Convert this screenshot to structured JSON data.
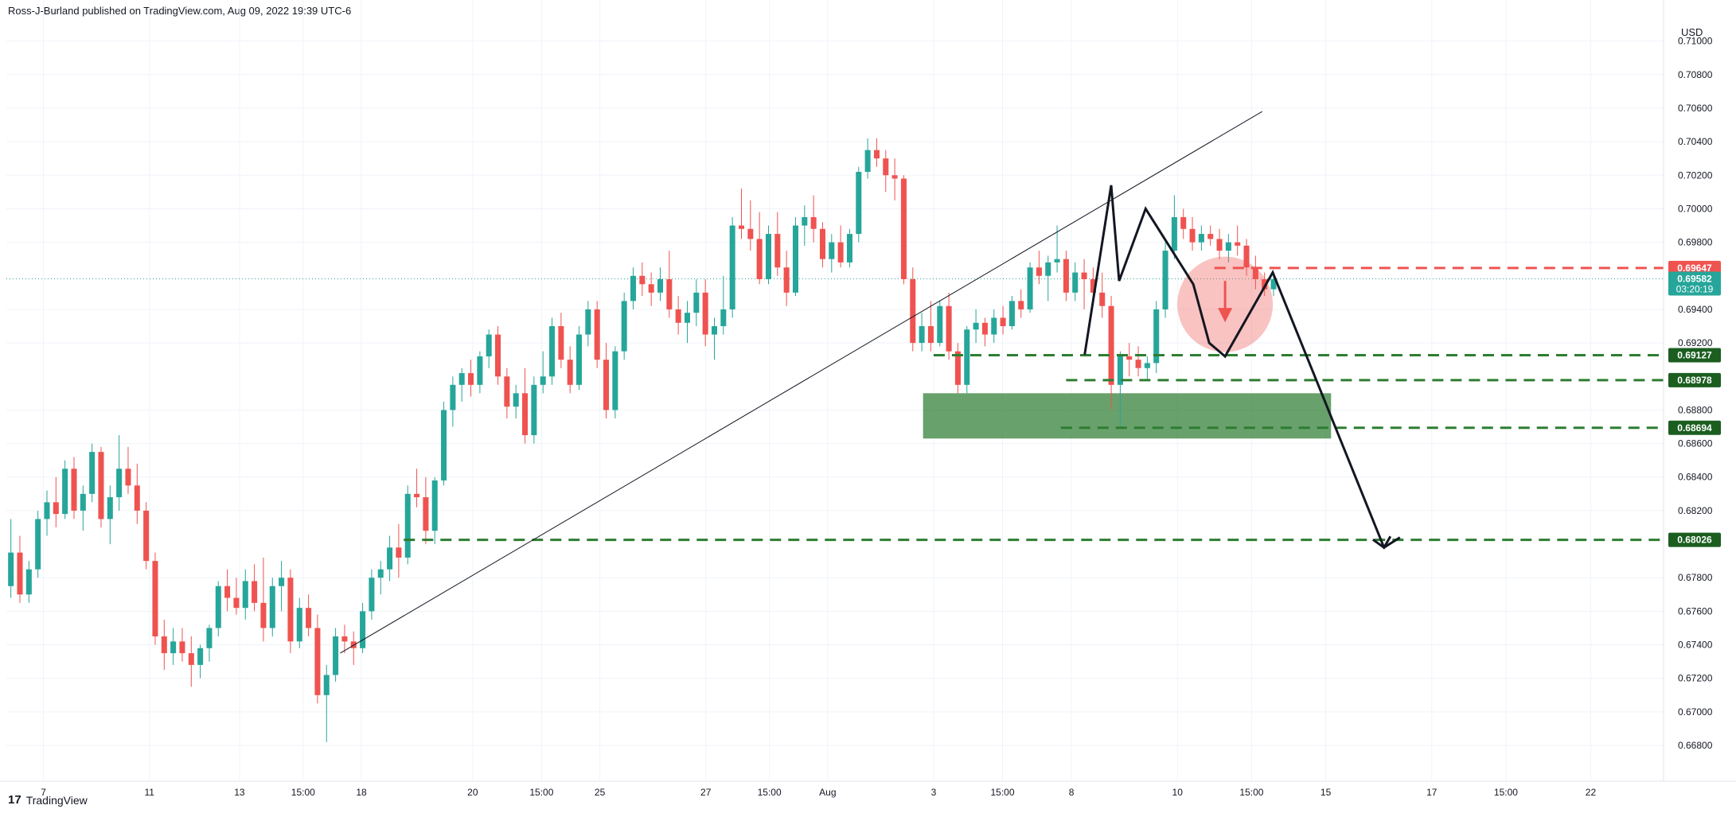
{
  "header": {
    "published": "Ross-J-Burland published on TradingView.com, Aug 09, 2022 19:39 UTC-6"
  },
  "footer": {
    "logo_mark": "17",
    "logo_text": "TradingView"
  },
  "colors": {
    "up": "#26a69a",
    "down": "#ef5350",
    "support": "#2e7d32",
    "resistance": "#ef5350",
    "zone": "#2e7d32",
    "label_dark": "#1b5e20"
  },
  "chart_data": {
    "type": "candlestick",
    "currency": "USD",
    "ylim": [
      0.6662,
      0.7115
    ],
    "y_ticks": [
      "0.71000",
      "0.70800",
      "0.70600",
      "0.70400",
      "0.70200",
      "0.70000",
      "0.69800",
      "0.69400",
      "0.69200",
      "0.68800",
      "0.68600",
      "0.68400",
      "0.68200",
      "0.67800",
      "0.67600",
      "0.67400",
      "0.67200",
      "0.67000",
      "0.66800"
    ],
    "x_ticks": [
      {
        "label": "7",
        "x": 0.7
      },
      {
        "label": "11",
        "x": 2.7
      },
      {
        "label": "13",
        "x": 4.4
      },
      {
        "label": "15:00",
        "x": 5.6
      },
      {
        "label": "18",
        "x": 6.7
      },
      {
        "label": "20",
        "x": 8.8
      },
      {
        "label": "15:00",
        "x": 10.1
      },
      {
        "label": "25",
        "x": 11.2
      },
      {
        "label": "27",
        "x": 13.2
      },
      {
        "label": "15:00",
        "x": 14.4
      },
      {
        "label": "Aug",
        "x": 15.5
      },
      {
        "label": "3",
        "x": 17.5
      },
      {
        "label": "15:00",
        "x": 18.8
      },
      {
        "label": "8",
        "x": 20.1
      },
      {
        "label": "10",
        "x": 22.1
      },
      {
        "label": "15:00",
        "x": 23.5
      },
      {
        "label": "15",
        "x": 24.9
      },
      {
        "label": "17",
        "x": 26.9
      },
      {
        "label": "15:00",
        "x": 28.3
      },
      {
        "label": "22",
        "x": 29.9
      }
    ],
    "ohlc": [
      [
        0.6775,
        0.6815,
        0.6768,
        0.6795
      ],
      [
        0.6795,
        0.6805,
        0.6765,
        0.677
      ],
      [
        0.677,
        0.679,
        0.6765,
        0.6785
      ],
      [
        0.6785,
        0.682,
        0.678,
        0.6815
      ],
      [
        0.6815,
        0.6832,
        0.6805,
        0.6825
      ],
      [
        0.6825,
        0.684,
        0.681,
        0.6818
      ],
      [
        0.6818,
        0.685,
        0.6815,
        0.6845
      ],
      [
        0.6845,
        0.6852,
        0.6815,
        0.682
      ],
      [
        0.682,
        0.6835,
        0.6808,
        0.683
      ],
      [
        0.683,
        0.686,
        0.6825,
        0.6855
      ],
      [
        0.6855,
        0.6858,
        0.681,
        0.6815
      ],
      [
        0.6815,
        0.6835,
        0.68,
        0.6828
      ],
      [
        0.6828,
        0.6865,
        0.682,
        0.6845
      ],
      [
        0.6845,
        0.6858,
        0.683,
        0.6835
      ],
      [
        0.6835,
        0.6848,
        0.6812,
        0.682
      ],
      [
        0.682,
        0.6825,
        0.6785,
        0.679
      ],
      [
        0.679,
        0.6795,
        0.674,
        0.6745
      ],
      [
        0.6745,
        0.6755,
        0.6725,
        0.6735
      ],
      [
        0.6735,
        0.675,
        0.6728,
        0.6742
      ],
      [
        0.6742,
        0.675,
        0.673,
        0.6735
      ],
      [
        0.6735,
        0.6745,
        0.6715,
        0.6728
      ],
      [
        0.6728,
        0.674,
        0.672,
        0.6738
      ],
      [
        0.6738,
        0.6752,
        0.673,
        0.675
      ],
      [
        0.675,
        0.6778,
        0.6745,
        0.6775
      ],
      [
        0.6775,
        0.6785,
        0.676,
        0.6768
      ],
      [
        0.6768,
        0.678,
        0.6758,
        0.6762
      ],
      [
        0.6762,
        0.6785,
        0.6755,
        0.6778
      ],
      [
        0.6778,
        0.6788,
        0.676,
        0.6765
      ],
      [
        0.6765,
        0.6792,
        0.6742,
        0.675
      ],
      [
        0.675,
        0.678,
        0.6745,
        0.6775
      ],
      [
        0.6775,
        0.679,
        0.676,
        0.678
      ],
      [
        0.678,
        0.6785,
        0.6735,
        0.6742
      ],
      [
        0.6742,
        0.6768,
        0.6738,
        0.6762
      ],
      [
        0.6762,
        0.677,
        0.6745,
        0.675
      ],
      [
        0.675,
        0.6758,
        0.6705,
        0.671
      ],
      [
        0.671,
        0.6728,
        0.6682,
        0.6722
      ],
      [
        0.6722,
        0.675,
        0.6718,
        0.6745
      ],
      [
        0.6745,
        0.6752,
        0.6735,
        0.6742
      ],
      [
        0.6742,
        0.6748,
        0.6728,
        0.6738
      ],
      [
        0.6738,
        0.6765,
        0.6735,
        0.676
      ],
      [
        0.676,
        0.6785,
        0.6755,
        0.678
      ],
      [
        0.678,
        0.679,
        0.677,
        0.6785
      ],
      [
        0.6785,
        0.6805,
        0.6778,
        0.6798
      ],
      [
        0.6798,
        0.6812,
        0.678,
        0.6792
      ],
      [
        0.6792,
        0.6835,
        0.6788,
        0.683
      ],
      [
        0.683,
        0.6845,
        0.6822,
        0.6828
      ],
      [
        0.6828,
        0.684,
        0.68,
        0.6808
      ],
      [
        0.6808,
        0.684,
        0.68,
        0.6838
      ],
      [
        0.6838,
        0.6885,
        0.6835,
        0.688
      ],
      [
        0.688,
        0.69,
        0.687,
        0.6895
      ],
      [
        0.6895,
        0.6905,
        0.6885,
        0.6902
      ],
      [
        0.6902,
        0.691,
        0.6888,
        0.6895
      ],
      [
        0.6895,
        0.6915,
        0.689,
        0.6912
      ],
      [
        0.6912,
        0.6928,
        0.6905,
        0.6925
      ],
      [
        0.6925,
        0.693,
        0.6895,
        0.69
      ],
      [
        0.69,
        0.6905,
        0.6875,
        0.6882
      ],
      [
        0.6882,
        0.6895,
        0.6875,
        0.689
      ],
      [
        0.689,
        0.6905,
        0.686,
        0.6865
      ],
      [
        0.6865,
        0.69,
        0.686,
        0.6895
      ],
      [
        0.6895,
        0.6915,
        0.689,
        0.69
      ],
      [
        0.69,
        0.6935,
        0.6895,
        0.693
      ],
      [
        0.693,
        0.6938,
        0.6905,
        0.691
      ],
      [
        0.691,
        0.6918,
        0.689,
        0.6895
      ],
      [
        0.6895,
        0.693,
        0.6892,
        0.6925
      ],
      [
        0.6925,
        0.6945,
        0.6918,
        0.694
      ],
      [
        0.694,
        0.6945,
        0.6905,
        0.691
      ],
      [
        0.691,
        0.692,
        0.6875,
        0.688
      ],
      [
        0.688,
        0.6918,
        0.6875,
        0.6915
      ],
      [
        0.6915,
        0.695,
        0.691,
        0.6945
      ],
      [
        0.6945,
        0.6965,
        0.694,
        0.696
      ],
      [
        0.696,
        0.6968,
        0.6948,
        0.6955
      ],
      [
        0.6955,
        0.6962,
        0.6942,
        0.695
      ],
      [
        0.695,
        0.6965,
        0.6945,
        0.6958
      ],
      [
        0.6958,
        0.6975,
        0.6935,
        0.694
      ],
      [
        0.694,
        0.6948,
        0.6925,
        0.6932
      ],
      [
        0.6932,
        0.6945,
        0.692,
        0.6938
      ],
      [
        0.6938,
        0.6958,
        0.693,
        0.695
      ],
      [
        0.695,
        0.6958,
        0.6918,
        0.6925
      ],
      [
        0.6925,
        0.6935,
        0.691,
        0.693
      ],
      [
        0.693,
        0.696,
        0.6925,
        0.694
      ],
      [
        0.694,
        0.6995,
        0.6935,
        0.699
      ],
      [
        0.699,
        0.7012,
        0.6982,
        0.6988
      ],
      [
        0.6988,
        0.7005,
        0.6975,
        0.6982
      ],
      [
        0.6982,
        0.6998,
        0.6955,
        0.6958
      ],
      [
        0.6958,
        0.699,
        0.6955,
        0.6985
      ],
      [
        0.6985,
        0.6998,
        0.696,
        0.6965
      ],
      [
        0.6965,
        0.6975,
        0.6942,
        0.695
      ],
      [
        0.695,
        0.6995,
        0.6948,
        0.699
      ],
      [
        0.699,
        0.7002,
        0.6978,
        0.6995
      ],
      [
        0.6995,
        0.7008,
        0.698,
        0.6988
      ],
      [
        0.6988,
        0.6992,
        0.6965,
        0.697
      ],
      [
        0.697,
        0.6985,
        0.6962,
        0.698
      ],
      [
        0.698,
        0.699,
        0.6965,
        0.6968
      ],
      [
        0.6968,
        0.6988,
        0.6965,
        0.6985
      ],
      [
        0.6985,
        0.7025,
        0.698,
        0.7022
      ],
      [
        0.7022,
        0.7042,
        0.7018,
        0.7035
      ],
      [
        0.7035,
        0.7042,
        0.7025,
        0.703
      ],
      [
        0.703,
        0.7035,
        0.701,
        0.702
      ],
      [
        0.702,
        0.703,
        0.7005,
        0.7018
      ],
      [
        0.7018,
        0.702,
        0.6955,
        0.6958
      ],
      [
        0.6958,
        0.6965,
        0.6915,
        0.692
      ],
      [
        0.692,
        0.6938,
        0.6915,
        0.693
      ],
      [
        0.693,
        0.6945,
        0.6915,
        0.692
      ],
      [
        0.692,
        0.6945,
        0.6918,
        0.6942
      ],
      [
        0.6942,
        0.695,
        0.691,
        0.6915
      ],
      [
        0.6915,
        0.692,
        0.689,
        0.6895
      ],
      [
        0.6895,
        0.693,
        0.689,
        0.6928
      ],
      [
        0.6928,
        0.694,
        0.692,
        0.6932
      ],
      [
        0.6932,
        0.6935,
        0.6918,
        0.6925
      ],
      [
        0.6925,
        0.694,
        0.692,
        0.6935
      ],
      [
        0.6935,
        0.6942,
        0.6925,
        0.693
      ],
      [
        0.693,
        0.6948,
        0.6928,
        0.6945
      ],
      [
        0.6945,
        0.6952,
        0.6935,
        0.694
      ],
      [
        0.694,
        0.6968,
        0.6938,
        0.6965
      ],
      [
        0.6965,
        0.6975,
        0.6955,
        0.696
      ],
      [
        0.696,
        0.6972,
        0.6945,
        0.6968
      ],
      [
        0.6968,
        0.699,
        0.6962,
        0.697
      ],
      [
        0.697,
        0.6975,
        0.6945,
        0.695
      ],
      [
        0.695,
        0.6968,
        0.6945,
        0.6962
      ],
      [
        0.6962,
        0.697,
        0.694,
        0.6958
      ],
      [
        0.6958,
        0.6965,
        0.6945,
        0.695
      ],
      [
        0.695,
        0.6962,
        0.6935,
        0.6942
      ],
      [
        0.6942,
        0.6948,
        0.688,
        0.6895
      ],
      [
        0.6895,
        0.6915,
        0.687,
        0.6912
      ],
      [
        0.6912,
        0.692,
        0.69,
        0.691
      ],
      [
        0.691,
        0.6918,
        0.69,
        0.6905
      ],
      [
        0.6905,
        0.6912,
        0.6898,
        0.6908
      ],
      [
        0.6908,
        0.6945,
        0.6902,
        0.694
      ],
      [
        0.694,
        0.698,
        0.6935,
        0.6975
      ],
      [
        0.6975,
        0.7008,
        0.697,
        0.6995
      ],
      [
        0.6995,
        0.7,
        0.6982,
        0.6988
      ],
      [
        0.6988,
        0.6995,
        0.6975,
        0.698
      ],
      [
        0.698,
        0.699,
        0.6975,
        0.6985
      ],
      [
        0.6985,
        0.699,
        0.6978,
        0.6982
      ],
      [
        0.6982,
        0.6988,
        0.697,
        0.6975
      ],
      [
        0.6975,
        0.6985,
        0.6968,
        0.698
      ],
      [
        0.698,
        0.699,
        0.6972,
        0.6978
      ],
      [
        0.6978,
        0.6982,
        0.696,
        0.6965
      ],
      [
        0.6965,
        0.6972,
        0.6952,
        0.6958
      ],
      [
        0.6958,
        0.6962,
        0.6948,
        0.6952
      ],
      [
        0.6952,
        0.6962,
        0.6948,
        0.6958
      ]
    ],
    "levels": [
      {
        "name": "resistance",
        "value": 0.69647,
        "label": "0.69647",
        "from_x": 22.8
      },
      {
        "name": "support-1",
        "value": 0.69127,
        "label": "0.69127",
        "from_x": 17.5
      },
      {
        "name": "support-2",
        "value": 0.68978,
        "label": "0.68978",
        "from_x": 20.0
      },
      {
        "name": "support-3",
        "value": 0.68694,
        "label": "0.68694",
        "from_x": 19.9
      },
      {
        "name": "support-4",
        "value": 0.68026,
        "label": "0.68026",
        "from_x": 7.5
      }
    ],
    "last_price": {
      "label": "0.69582",
      "countdown": "03:20:19",
      "value": 0.69582
    },
    "support_zone": {
      "x0": 17.3,
      "x1": 25.0,
      "y_top": 0.689,
      "y_bottom": 0.6863
    },
    "trendline": {
      "from": [
        6.3,
        0.6735
      ],
      "to": [
        23.7,
        0.7058
      ]
    },
    "pattern_path": [
      [
        20.35,
        0.6913
      ],
      [
        20.85,
        0.7014
      ],
      [
        21.0,
        0.6957
      ],
      [
        21.5,
        0.7
      ],
      [
        22.4,
        0.6955
      ],
      [
        22.7,
        0.692
      ],
      [
        23.0,
        0.6912
      ],
      [
        23.9,
        0.6962
      ],
      [
        26.0,
        0.6798
      ],
      [
        26.3,
        0.6804
      ]
    ],
    "marker_circle": {
      "x": 23.0,
      "y": 0.6943
    },
    "bear_arrow": {
      "x": 23.0,
      "from": 0.6957,
      "to": 0.6934
    }
  }
}
